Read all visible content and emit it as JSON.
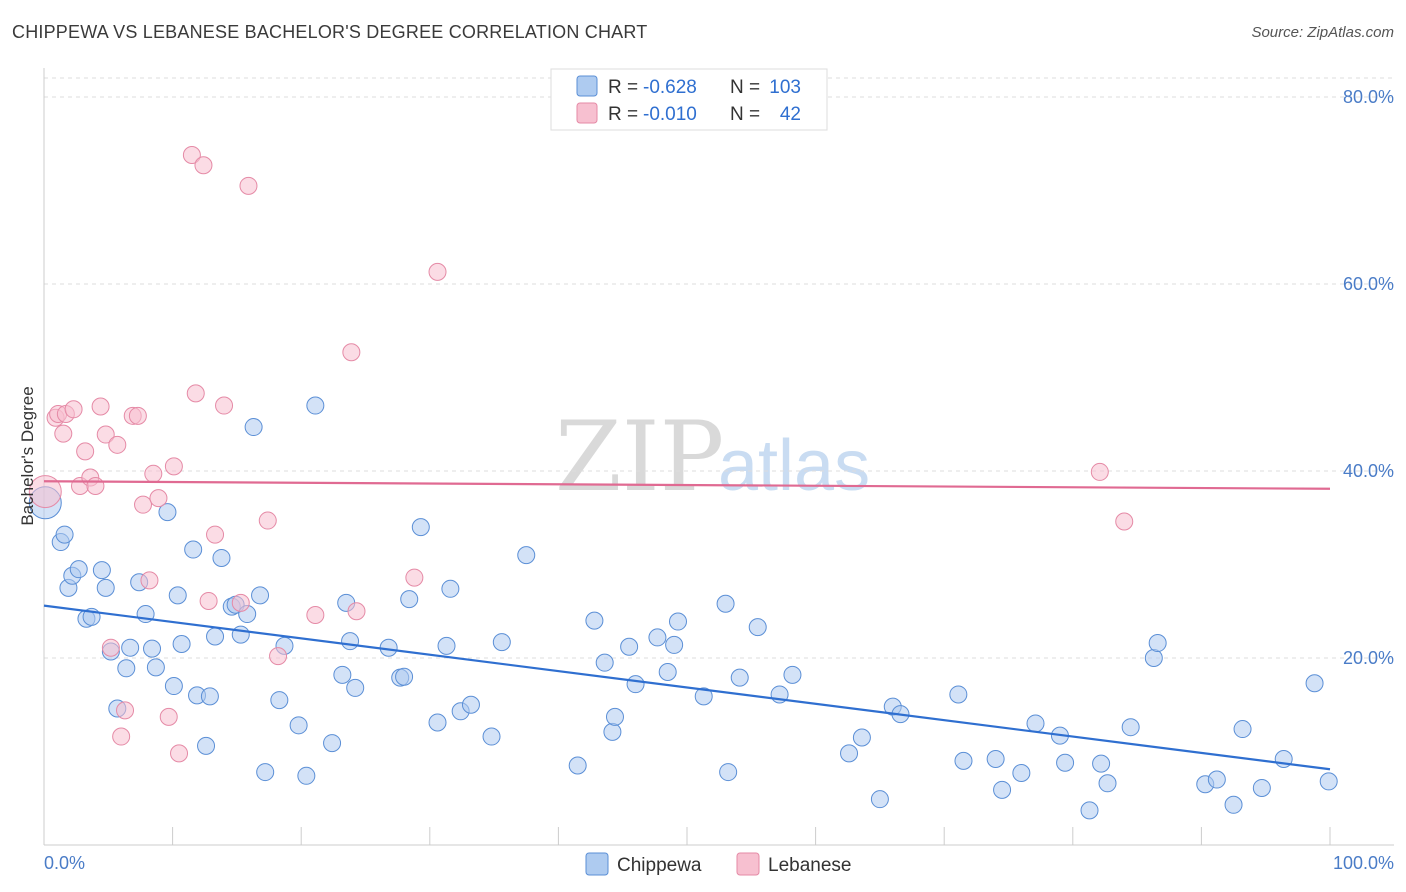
{
  "header": {
    "title": "CHIPPEWA VS LEBANESE BACHELOR'S DEGREE CORRELATION CHART",
    "source": "Source: ZipAtlas.com"
  },
  "watermark": {
    "zip": "ZIP",
    "atlas": "atlas"
  },
  "colors": {
    "chippewa_fill": "#aecbf0",
    "chippewa_stroke": "#5b8fd6",
    "chippewa_line": "#2f6fd0",
    "lebanese_fill": "#f7c0d0",
    "lebanese_stroke": "#e58aa6",
    "lebanese_line": "#e06a92",
    "axis_label": "#4a7cc7",
    "grid": "#dddddd"
  },
  "legend": {
    "rows": [
      {
        "series": "Chippewa",
        "r_label": "R =",
        "r_value": "-0.628",
        "n_label": "N =",
        "n_value": "103"
      },
      {
        "series": "Lebanese",
        "r_label": "R =",
        "r_value": "-0.010",
        "n_label": "N =",
        "n_value": "42"
      }
    ]
  },
  "chart_data": {
    "type": "scatter",
    "title": "CHIPPEWA VS LEBANESE BACHELOR'S DEGREE CORRELATION CHART",
    "xlabel": "",
    "ylabel": "Bachelor's Degree",
    "xlim": [
      0,
      100
    ],
    "ylim": [
      0,
      80
    ],
    "x_tick_labels": [
      "0.0%",
      "100.0%"
    ],
    "y_ticks": [
      20,
      40,
      60,
      80
    ],
    "y_tick_labels": [
      "20.0%",
      "40.0%",
      "60.0%",
      "80.0%"
    ],
    "grid": true,
    "legend_position": "bottom-center",
    "series": [
      {
        "name": "Chippewa",
        "R": -0.628,
        "N": 103,
        "trend": {
          "x": [
            0,
            100
          ],
          "y": [
            25.6,
            8.1
          ]
        },
        "points": [
          [
            0.1,
            36.6
          ],
          [
            1.3,
            32.4
          ],
          [
            1.6,
            33.2
          ],
          [
            1.9,
            27.5
          ],
          [
            2.2,
            28.8
          ],
          [
            2.7,
            29.5
          ],
          [
            3.3,
            24.2
          ],
          [
            3.7,
            24.4
          ],
          [
            4.5,
            29.4
          ],
          [
            4.8,
            27.5
          ],
          [
            5.2,
            20.7
          ],
          [
            5.7,
            14.6
          ],
          [
            6.4,
            18.9
          ],
          [
            6.7,
            21.1
          ],
          [
            7.4,
            28.1
          ],
          [
            7.9,
            24.7
          ],
          [
            8.4,
            21.0
          ],
          [
            8.7,
            19.0
          ],
          [
            9.6,
            35.6
          ],
          [
            10.1,
            17.0
          ],
          [
            10.4,
            26.7
          ],
          [
            10.7,
            21.5
          ],
          [
            11.6,
            31.6
          ],
          [
            11.9,
            16.0
          ],
          [
            12.6,
            10.6
          ],
          [
            12.9,
            15.9
          ],
          [
            13.3,
            22.3
          ],
          [
            13.8,
            30.7
          ],
          [
            14.6,
            25.5
          ],
          [
            14.9,
            25.7
          ],
          [
            15.3,
            22.5
          ],
          [
            15.8,
            24.7
          ],
          [
            16.3,
            44.7
          ],
          [
            16.8,
            26.7
          ],
          [
            17.2,
            7.8
          ],
          [
            18.3,
            15.5
          ],
          [
            18.7,
            21.3
          ],
          [
            19.8,
            12.8
          ],
          [
            20.4,
            7.4
          ],
          [
            21.1,
            47.0
          ],
          [
            22.4,
            10.9
          ],
          [
            23.2,
            18.2
          ],
          [
            23.5,
            25.9
          ],
          [
            23.8,
            21.8
          ],
          [
            24.2,
            16.8
          ],
          [
            26.8,
            21.1
          ],
          [
            27.7,
            17.9
          ],
          [
            28.0,
            18.0
          ],
          [
            28.4,
            26.3
          ],
          [
            29.3,
            34.0
          ],
          [
            30.6,
            13.1
          ],
          [
            31.3,
            21.3
          ],
          [
            31.6,
            27.4
          ],
          [
            32.4,
            14.3
          ],
          [
            33.2,
            15.0
          ],
          [
            34.8,
            11.6
          ],
          [
            35.6,
            21.7
          ],
          [
            37.5,
            31.0
          ],
          [
            41.5,
            8.5
          ],
          [
            42.8,
            24.0
          ],
          [
            43.6,
            19.5
          ],
          [
            44.2,
            12.1
          ],
          [
            44.4,
            13.7
          ],
          [
            45.5,
            21.2
          ],
          [
            46.0,
            17.2
          ],
          [
            47.7,
            22.2
          ],
          [
            48.5,
            18.5
          ],
          [
            49.0,
            21.4
          ],
          [
            49.3,
            23.9
          ],
          [
            51.3,
            15.9
          ],
          [
            53.0,
            25.8
          ],
          [
            53.2,
            7.8
          ],
          [
            54.1,
            17.9
          ],
          [
            55.5,
            23.3
          ],
          [
            57.2,
            16.1
          ],
          [
            58.2,
            18.2
          ],
          [
            62.6,
            9.8
          ],
          [
            63.6,
            11.5
          ],
          [
            65.0,
            4.9
          ],
          [
            66.0,
            14.8
          ],
          [
            66.6,
            14.0
          ],
          [
            71.1,
            16.1
          ],
          [
            71.5,
            9.0
          ],
          [
            74.0,
            9.2
          ],
          [
            74.5,
            5.9
          ],
          [
            76.0,
            7.7
          ],
          [
            77.1,
            13.0
          ],
          [
            79.0,
            11.7
          ],
          [
            79.4,
            8.8
          ],
          [
            81.3,
            3.7
          ],
          [
            82.2,
            8.7
          ],
          [
            82.7,
            6.6
          ],
          [
            84.5,
            12.6
          ],
          [
            86.3,
            20.0
          ],
          [
            86.6,
            21.6
          ],
          [
            90.3,
            6.5
          ],
          [
            91.2,
            7.0
          ],
          [
            92.5,
            4.3
          ],
          [
            93.2,
            12.4
          ],
          [
            94.7,
            6.1
          ],
          [
            96.4,
            9.2
          ],
          [
            98.8,
            17.3
          ],
          [
            99.9,
            6.8
          ]
        ]
      },
      {
        "name": "Lebanese",
        "R": -0.01,
        "N": 42,
        "trend": {
          "x": [
            0,
            100
          ],
          "y": [
            38.9,
            38.1
          ]
        },
        "points": [
          [
            0.1,
            37.8
          ],
          [
            0.9,
            45.7
          ],
          [
            1.1,
            46.1
          ],
          [
            1.5,
            44.0
          ],
          [
            1.7,
            46.1
          ],
          [
            2.3,
            46.6
          ],
          [
            2.8,
            38.4
          ],
          [
            3.2,
            42.1
          ],
          [
            3.6,
            39.3
          ],
          [
            4.0,
            38.4
          ],
          [
            4.4,
            46.9
          ],
          [
            4.8,
            43.9
          ],
          [
            5.2,
            21.1
          ],
          [
            5.7,
            42.8
          ],
          [
            6.0,
            11.6
          ],
          [
            6.3,
            14.4
          ],
          [
            6.9,
            45.9
          ],
          [
            7.3,
            45.9
          ],
          [
            7.7,
            36.4
          ],
          [
            8.2,
            28.3
          ],
          [
            8.5,
            39.7
          ],
          [
            8.9,
            37.1
          ],
          [
            9.7,
            13.7
          ],
          [
            10.1,
            40.5
          ],
          [
            10.5,
            9.8
          ],
          [
            11.5,
            73.8
          ],
          [
            11.8,
            48.3
          ],
          [
            12.4,
            72.7
          ],
          [
            12.8,
            26.1
          ],
          [
            13.3,
            33.2
          ],
          [
            14.0,
            47.0
          ],
          [
            15.3,
            25.9
          ],
          [
            15.9,
            70.5
          ],
          [
            17.4,
            34.7
          ],
          [
            18.2,
            20.2
          ],
          [
            21.1,
            24.6
          ],
          [
            23.9,
            52.7
          ],
          [
            24.3,
            25.0
          ],
          [
            28.8,
            28.6
          ],
          [
            30.6,
            61.3
          ],
          [
            82.1,
            39.9
          ],
          [
            84.0,
            34.6
          ]
        ]
      }
    ]
  },
  "bottom_legend": {
    "items": [
      {
        "label": "Chippewa"
      },
      {
        "label": "Lebanese"
      }
    ]
  }
}
